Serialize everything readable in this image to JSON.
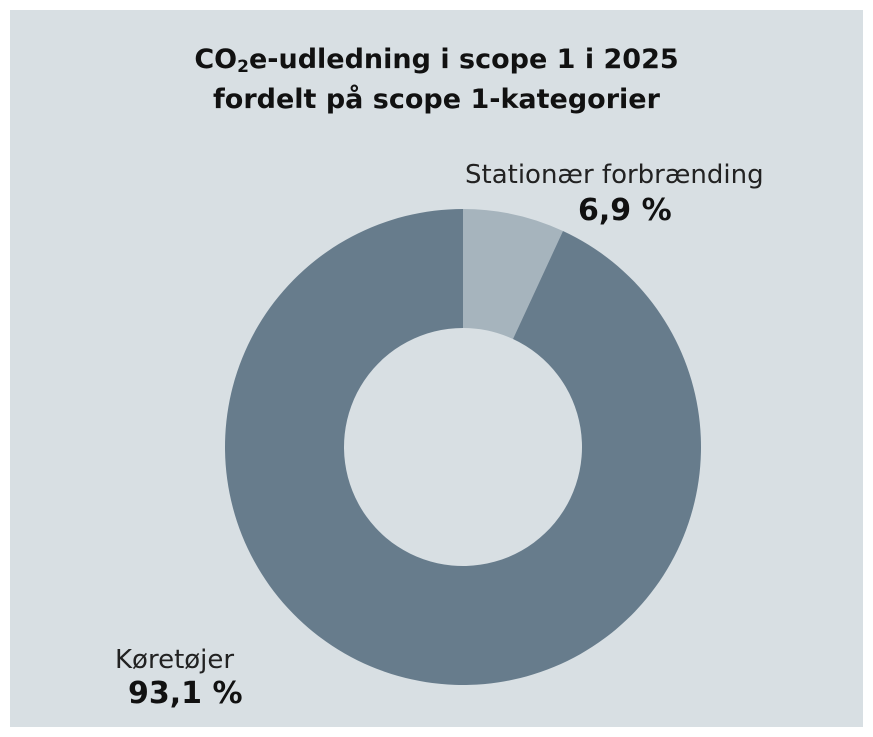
{
  "chart_data": {
    "type": "pie",
    "variant": "donut",
    "title_line1_prefix": "CO",
    "title_line1_sub": "2",
    "title_line1_suffix": "e-udledning i scope 1 i 2025",
    "title_line2": "fordelt på scope 1-kategorier",
    "categories": [
      "Stationær forbrænding",
      "Køretøjer"
    ],
    "values": [
      6.9,
      93.1
    ],
    "value_labels": [
      "6,9 %",
      "93,1 %"
    ],
    "unit": "%",
    "colors": [
      "#a6b4bd",
      "#677c8c"
    ],
    "background": "#d8dfe3"
  }
}
